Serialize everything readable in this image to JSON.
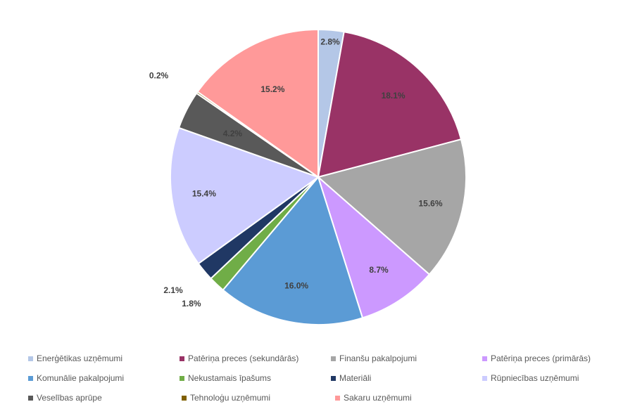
{
  "chart_data": {
    "type": "pie",
    "title": "",
    "legend_position": "bottom",
    "slices": [
      {
        "name": "Enerģētikas uzņēmumi",
        "value": 2.8,
        "label": "2.8%",
        "color": "#b4c7e7"
      },
      {
        "name": "Patēriņa preces (sekundārās)",
        "value": 18.1,
        "label": "18.1%",
        "color": "#993366"
      },
      {
        "name": "Finanšu pakalpojumi",
        "value": 15.6,
        "label": "15.6%",
        "color": "#a6a6a6"
      },
      {
        "name": "Patēriņa preces (primārās)",
        "value": 8.7,
        "label": "8.7%",
        "color": "#cc99ff"
      },
      {
        "name": "Komunālie pakalpojumi",
        "value": 16.0,
        "label": "16.0%",
        "color": "#5b9bd5"
      },
      {
        "name": "Nekustamais īpašums",
        "value": 1.8,
        "label": "1.8%",
        "color": "#70ad47"
      },
      {
        "name": "Materiāli",
        "value": 2.1,
        "label": "2.1%",
        "color": "#203864"
      },
      {
        "name": "Rūpniecības uzņēmumi",
        "value": 15.4,
        "label": "15.4%",
        "color": "#ccccff"
      },
      {
        "name": "Veselības aprūpe",
        "value": 4.2,
        "label": "4.2%",
        "color": "#595959"
      },
      {
        "name": "Tehnoloģu uzņēmumi",
        "value": 0.2,
        "label": "0.2%",
        "color": "#806000"
      },
      {
        "name": "Sakaru uzņēmumi",
        "value": 15.2,
        "label": "15.2%",
        "color": "#ff9999"
      }
    ]
  }
}
